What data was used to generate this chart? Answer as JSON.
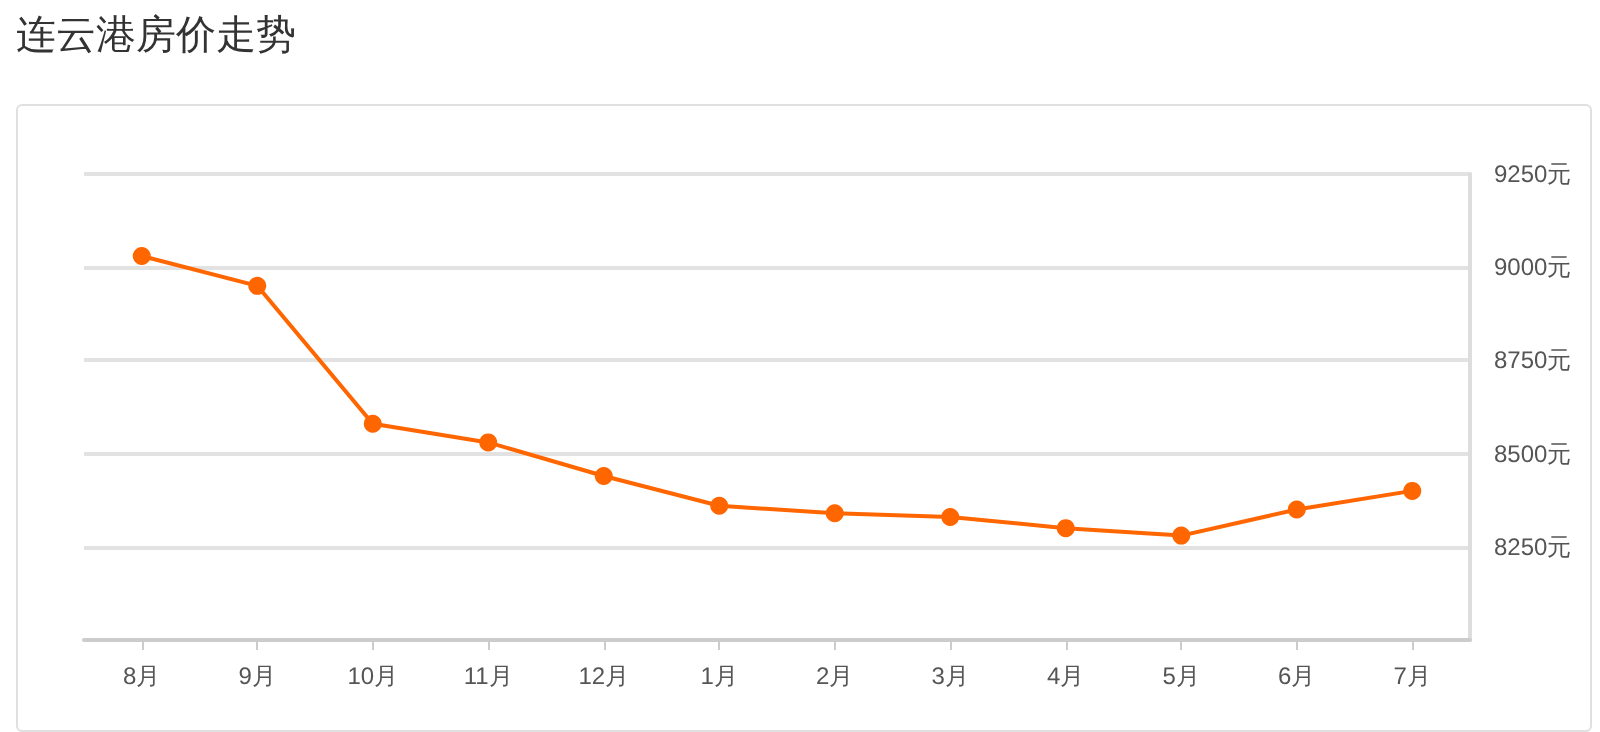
{
  "chart_data": {
    "type": "line",
    "title": "连云港房价走势",
    "categories": [
      "8月",
      "9月",
      "10月",
      "11月",
      "12月",
      "1月",
      "2月",
      "3月",
      "4月",
      "5月",
      "6月",
      "7月"
    ],
    "series": [
      {
        "color": "#ff6600",
        "values": [
          9030,
          8950,
          8580,
          8530,
          8440,
          8360,
          8340,
          8330,
          8300,
          8280,
          8350,
          8400
        ]
      }
    ],
    "ylim": [
      8000,
      9250
    ],
    "yticks": [
      {
        "value": 8000,
        "label": null
      },
      {
        "value": 8250,
        "label": "8250元"
      },
      {
        "value": 8500,
        "label": "8500元"
      },
      {
        "value": 8750,
        "label": "8750元"
      },
      {
        "value": 9000,
        "label": "9000元"
      },
      {
        "value": 9250,
        "label": "9250元"
      }
    ],
    "grid": "y",
    "marker": "circle",
    "line_style": "solid"
  }
}
